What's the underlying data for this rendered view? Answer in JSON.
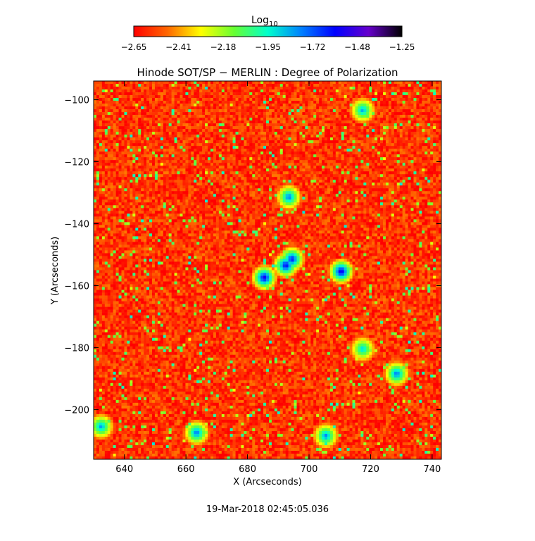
{
  "colorbar": {
    "label_main": "Log",
    "label_sub": "10",
    "ticks": [
      "−2.65",
      "−2.41",
      "−2.18",
      "−1.95",
      "−1.72",
      "−1.48",
      "−1.25"
    ],
    "range": [
      -2.65,
      -1.25
    ],
    "stops": [
      "#ff0000",
      "#ff6600",
      "#ffff00",
      "#66ff33",
      "#00ffcc",
      "#0080ff",
      "#0000ff",
      "#6600cc",
      "#000000"
    ]
  },
  "chart_data": {
    "type": "heatmap",
    "title": "Hinode SOT/SP − MERLIN : Degree of Polarization",
    "xlabel": "X (Arcseconds)",
    "ylabel": "Y (Arcseconds)",
    "xlim": [
      630,
      743
    ],
    "ylim": [
      -216,
      -94
    ],
    "x_ticks": [
      640,
      660,
      680,
      700,
      720,
      740
    ],
    "y_ticks": [
      -100,
      -120,
      -140,
      -160,
      -180,
      -200
    ],
    "x_tick_labels": [
      "640",
      "660",
      "680",
      "700",
      "720",
      "740"
    ],
    "y_tick_labels": [
      "−100",
      "−120",
      "−140",
      "−160",
      "−180",
      "−200"
    ],
    "colormap_range": [
      -2.65,
      -1.25
    ],
    "colormap_stops": [
      "#ff0000",
      "#ff6600",
      "#ffff00",
      "#66ff33",
      "#00ffcc",
      "#0080ff",
      "#0000ff",
      "#6600cc",
      "#000000"
    ],
    "background_value": -2.55,
    "grid": false,
    "features": [
      {
        "x": 692,
        "y": -153,
        "value": -1.55
      },
      {
        "x": 694,
        "y": -151,
        "value": -1.58
      },
      {
        "x": 685,
        "y": -157,
        "value": -1.52
      },
      {
        "x": 710,
        "y": -155,
        "value": -1.5
      },
      {
        "x": 693,
        "y": -131,
        "value": -1.72
      },
      {
        "x": 728,
        "y": -188,
        "value": -1.72
      },
      {
        "x": 663,
        "y": -207,
        "value": -1.72
      },
      {
        "x": 705,
        "y": -208,
        "value": -1.75
      },
      {
        "x": 717,
        "y": -180,
        "value": -1.85
      },
      {
        "x": 632,
        "y": -205,
        "value": -1.78
      },
      {
        "x": 717,
        "y": -103,
        "value": -1.8
      }
    ]
  },
  "timestamp": "19-Mar-2018 02:45:05.036"
}
